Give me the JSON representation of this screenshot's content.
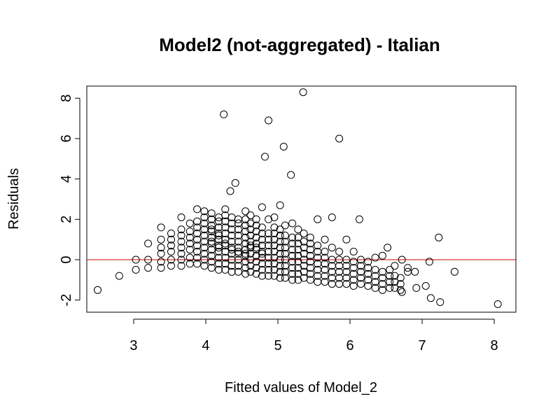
{
  "chart_data": {
    "type": "scatter",
    "title": "Model2 (not-aggregated) - Italian",
    "xlabel": "Fitted values of Model_2",
    "ylabel": "Residuals",
    "xlim": [
      2.35,
      8.3
    ],
    "ylim": [
      -2.6,
      8.6
    ],
    "xticks": [
      3,
      4,
      5,
      6,
      7,
      8
    ],
    "yticks": [
      -2,
      0,
      2,
      4,
      6,
      8
    ],
    "grid": false,
    "reference_line": {
      "y": 0,
      "color": "#cc0000"
    },
    "marker": "open-circle",
    "series": [
      {
        "x": [
          2.5,
          2.8,
          3.03,
          3.03,
          3.2,
          3.2,
          3.2,
          3.38,
          3.38,
          3.38,
          3.38,
          3.38,
          3.38,
          3.52,
          3.52,
          3.52,
          3.52,
          3.52,
          3.52,
          3.66,
          3.66,
          3.66,
          3.66,
          3.66,
          3.66,
          3.66,
          3.66,
          3.78,
          3.78,
          3.78,
          3.78,
          3.78,
          3.78,
          3.78,
          3.88,
          3.88,
          3.88,
          3.88,
          3.88,
          3.88,
          3.88,
          3.88,
          3.88,
          3.98,
          3.98,
          3.98,
          3.98,
          3.98,
          3.98,
          3.98,
          3.98,
          3.98,
          3.98,
          4.08,
          4.08,
          4.08,
          4.08,
          4.08,
          4.08,
          4.08,
          4.08,
          4.08,
          4.08,
          4.08,
          4.08,
          4.18,
          4.18,
          4.18,
          4.18,
          4.18,
          4.18,
          4.18,
          4.18,
          4.18,
          4.18,
          4.18,
          4.18,
          4.25,
          4.27,
          4.27,
          4.27,
          4.27,
          4.27,
          4.27,
          4.27,
          4.27,
          4.27,
          4.27,
          4.27,
          4.27,
          4.34,
          4.36,
          4.36,
          4.36,
          4.36,
          4.36,
          4.36,
          4.36,
          4.36,
          4.36,
          4.36,
          4.36,
          4.41,
          4.45,
          4.45,
          4.45,
          4.45,
          4.45,
          4.45,
          4.45,
          4.45,
          4.45,
          4.45,
          4.45,
          4.55,
          4.55,
          4.55,
          4.55,
          4.55,
          4.55,
          4.55,
          4.55,
          4.55,
          4.55,
          4.55,
          4.55,
          4.62,
          4.62,
          4.62,
          4.62,
          4.62,
          4.62,
          4.62,
          4.62,
          4.62,
          4.62,
          4.62,
          4.7,
          4.7,
          4.7,
          4.7,
          4.7,
          4.7,
          4.7,
          4.7,
          4.7,
          4.7,
          4.7,
          4.78,
          4.78,
          4.78,
          4.78,
          4.78,
          4.78,
          4.78,
          4.78,
          4.78,
          4.78,
          4.78,
          4.82,
          4.87,
          4.87,
          4.87,
          4.87,
          4.87,
          4.87,
          4.87,
          4.87,
          4.87,
          4.87,
          4.95,
          4.95,
          4.95,
          4.95,
          4.95,
          4.95,
          4.95,
          4.95,
          4.95,
          4.95,
          5.03,
          5.03,
          5.03,
          5.03,
          5.03,
          5.03,
          5.03,
          5.03,
          5.03,
          5.03,
          5.08,
          5.1,
          5.1,
          5.1,
          5.1,
          5.1,
          5.1,
          5.1,
          5.1,
          5.1,
          5.18,
          5.2,
          5.2,
          5.2,
          5.2,
          5.2,
          5.2,
          5.2,
          5.2,
          5.2,
          5.28,
          5.28,
          5.28,
          5.28,
          5.28,
          5.28,
          5.28,
          5.28,
          5.28,
          5.35,
          5.36,
          5.36,
          5.36,
          5.36,
          5.36,
          5.36,
          5.36,
          5.36,
          5.45,
          5.45,
          5.45,
          5.45,
          5.45,
          5.45,
          5.45,
          5.45,
          5.55,
          5.55,
          5.55,
          5.55,
          5.55,
          5.55,
          5.55,
          5.55,
          5.65,
          5.65,
          5.65,
          5.65,
          5.65,
          5.65,
          5.65,
          5.75,
          5.75,
          5.75,
          5.75,
          5.75,
          5.75,
          5.75,
          5.85,
          5.85,
          5.85,
          5.85,
          5.85,
          5.85,
          5.85,
          5.95,
          5.95,
          5.95,
          5.95,
          5.95,
          5.95,
          6.05,
          6.05,
          6.05,
          6.05,
          6.05,
          6.05,
          6.13,
          6.15,
          6.15,
          6.15,
          6.15,
          6.15,
          6.25,
          6.25,
          6.25,
          6.25,
          6.25,
          6.35,
          6.35,
          6.35,
          6.35,
          6.35,
          6.45,
          6.45,
          6.45,
          6.45,
          6.45,
          6.52,
          6.55,
          6.55,
          6.55,
          6.55,
          6.62,
          6.62,
          6.62,
          6.62,
          6.7,
          6.7,
          6.7,
          6.72,
          6.72,
          6.8,
          6.8,
          6.9,
          6.92,
          7.05,
          7.1,
          7.12,
          7.23,
          7.25,
          7.45,
          8.05
        ],
        "y": [
          -1.5,
          -0.8,
          -0.5,
          0.0,
          -0.4,
          0.0,
          0.8,
          -0.4,
          -0.1,
          0.3,
          0.6,
          1.0,
          1.6,
          -0.3,
          0.0,
          0.4,
          0.7,
          1.0,
          1.3,
          -0.3,
          0.0,
          0.3,
          0.6,
          0.9,
          1.2,
          1.5,
          2.1,
          -0.2,
          0.1,
          0.5,
          0.8,
          1.1,
          1.4,
          1.8,
          -0.2,
          0.1,
          0.4,
          0.7,
          1.0,
          1.3,
          1.6,
          1.9,
          2.5,
          -0.3,
          0.0,
          0.3,
          0.6,
          0.9,
          1.2,
          1.5,
          1.8,
          2.1,
          2.4,
          -0.4,
          -0.1,
          0.2,
          0.5,
          0.8,
          1.1,
          1.4,
          1.7,
          2.0,
          2.3,
          1.5,
          0.9,
          -0.5,
          -0.2,
          0.1,
          0.4,
          0.7,
          1.0,
          1.3,
          1.6,
          1.9,
          2.1,
          1.2,
          0.6,
          7.2,
          -0.5,
          -0.2,
          0.1,
          0.4,
          0.7,
          1.0,
          1.3,
          1.6,
          1.9,
          2.2,
          2.5,
          0.8,
          3.4,
          -0.6,
          -0.3,
          0.0,
          0.3,
          0.6,
          0.9,
          1.2,
          1.5,
          1.8,
          2.1,
          0.5,
          3.8,
          -0.6,
          -0.3,
          0.0,
          0.3,
          0.6,
          0.9,
          1.2,
          1.5,
          1.8,
          2.0,
          0.4,
          -0.7,
          -0.4,
          -0.1,
          0.2,
          0.5,
          0.8,
          1.1,
          1.4,
          1.7,
          2.0,
          2.4,
          0.3,
          -0.6,
          -0.3,
          0.0,
          0.3,
          0.6,
          0.9,
          1.2,
          1.5,
          1.8,
          2.2,
          0.7,
          -0.7,
          -0.4,
          -0.1,
          0.2,
          0.5,
          0.8,
          1.1,
          1.4,
          1.7,
          2.0,
          0.6,
          -0.8,
          -0.5,
          -0.2,
          0.1,
          0.4,
          0.7,
          1.0,
          1.3,
          1.6,
          2.6,
          0.3,
          5.1,
          -0.8,
          -0.5,
          -0.2,
          0.1,
          0.4,
          0.7,
          1.0,
          1.3,
          6.9,
          2.0,
          -0.8,
          -0.5,
          -0.2,
          0.1,
          0.4,
          0.7,
          1.0,
          1.3,
          1.6,
          2.1,
          -0.9,
          -0.6,
          -0.3,
          0.0,
          0.3,
          0.6,
          0.9,
          1.2,
          1.5,
          2.7,
          5.6,
          -0.9,
          -0.6,
          -0.3,
          0.0,
          0.3,
          0.6,
          0.9,
          1.2,
          1.7,
          4.2,
          -1.0,
          -0.7,
          -0.4,
          -0.1,
          0.2,
          0.5,
          0.8,
          1.1,
          1.8,
          -1.0,
          -0.7,
          -0.4,
          -0.1,
          0.2,
          0.5,
          0.8,
          1.1,
          1.5,
          8.3,
          -0.9,
          -0.6,
          -0.3,
          0.0,
          0.3,
          0.6,
          0.9,
          1.3,
          -1.0,
          -0.7,
          -0.4,
          -0.1,
          0.2,
          0.5,
          0.8,
          1.1,
          -1.1,
          -0.8,
          -0.5,
          -0.2,
          0.1,
          0.4,
          0.7,
          2.0,
          -1.1,
          -0.8,
          -0.5,
          -0.2,
          0.1,
          0.4,
          1.0,
          -1.2,
          -0.9,
          -0.6,
          -0.3,
          0.0,
          0.6,
          2.1,
          -1.2,
          -0.9,
          -0.6,
          -0.3,
          0.0,
          0.4,
          6.0,
          -1.2,
          -0.9,
          -0.6,
          -0.3,
          0.0,
          1.0,
          -1.3,
          -1.0,
          -0.7,
          -0.4,
          -0.1,
          0.4,
          2.0,
          -1.2,
          -0.9,
          -0.6,
          -0.3,
          0.0,
          -1.3,
          -1.0,
          -0.7,
          -0.4,
          -0.1,
          -1.4,
          -1.1,
          -0.8,
          -0.5,
          0.1,
          -1.5,
          -1.2,
          -0.9,
          -0.6,
          0.2,
          0.6,
          -1.4,
          -1.1,
          -0.8,
          -0.5,
          -1.4,
          -1.1,
          -0.8,
          -0.3,
          -1.5,
          -1.2,
          -0.9,
          0.0,
          -1.6,
          -0.6,
          -0.4,
          -0.6,
          -1.4,
          -1.3,
          -0.1,
          -1.9,
          1.1,
          -2.1,
          -0.6,
          -2.2
        ]
      }
    ]
  }
}
